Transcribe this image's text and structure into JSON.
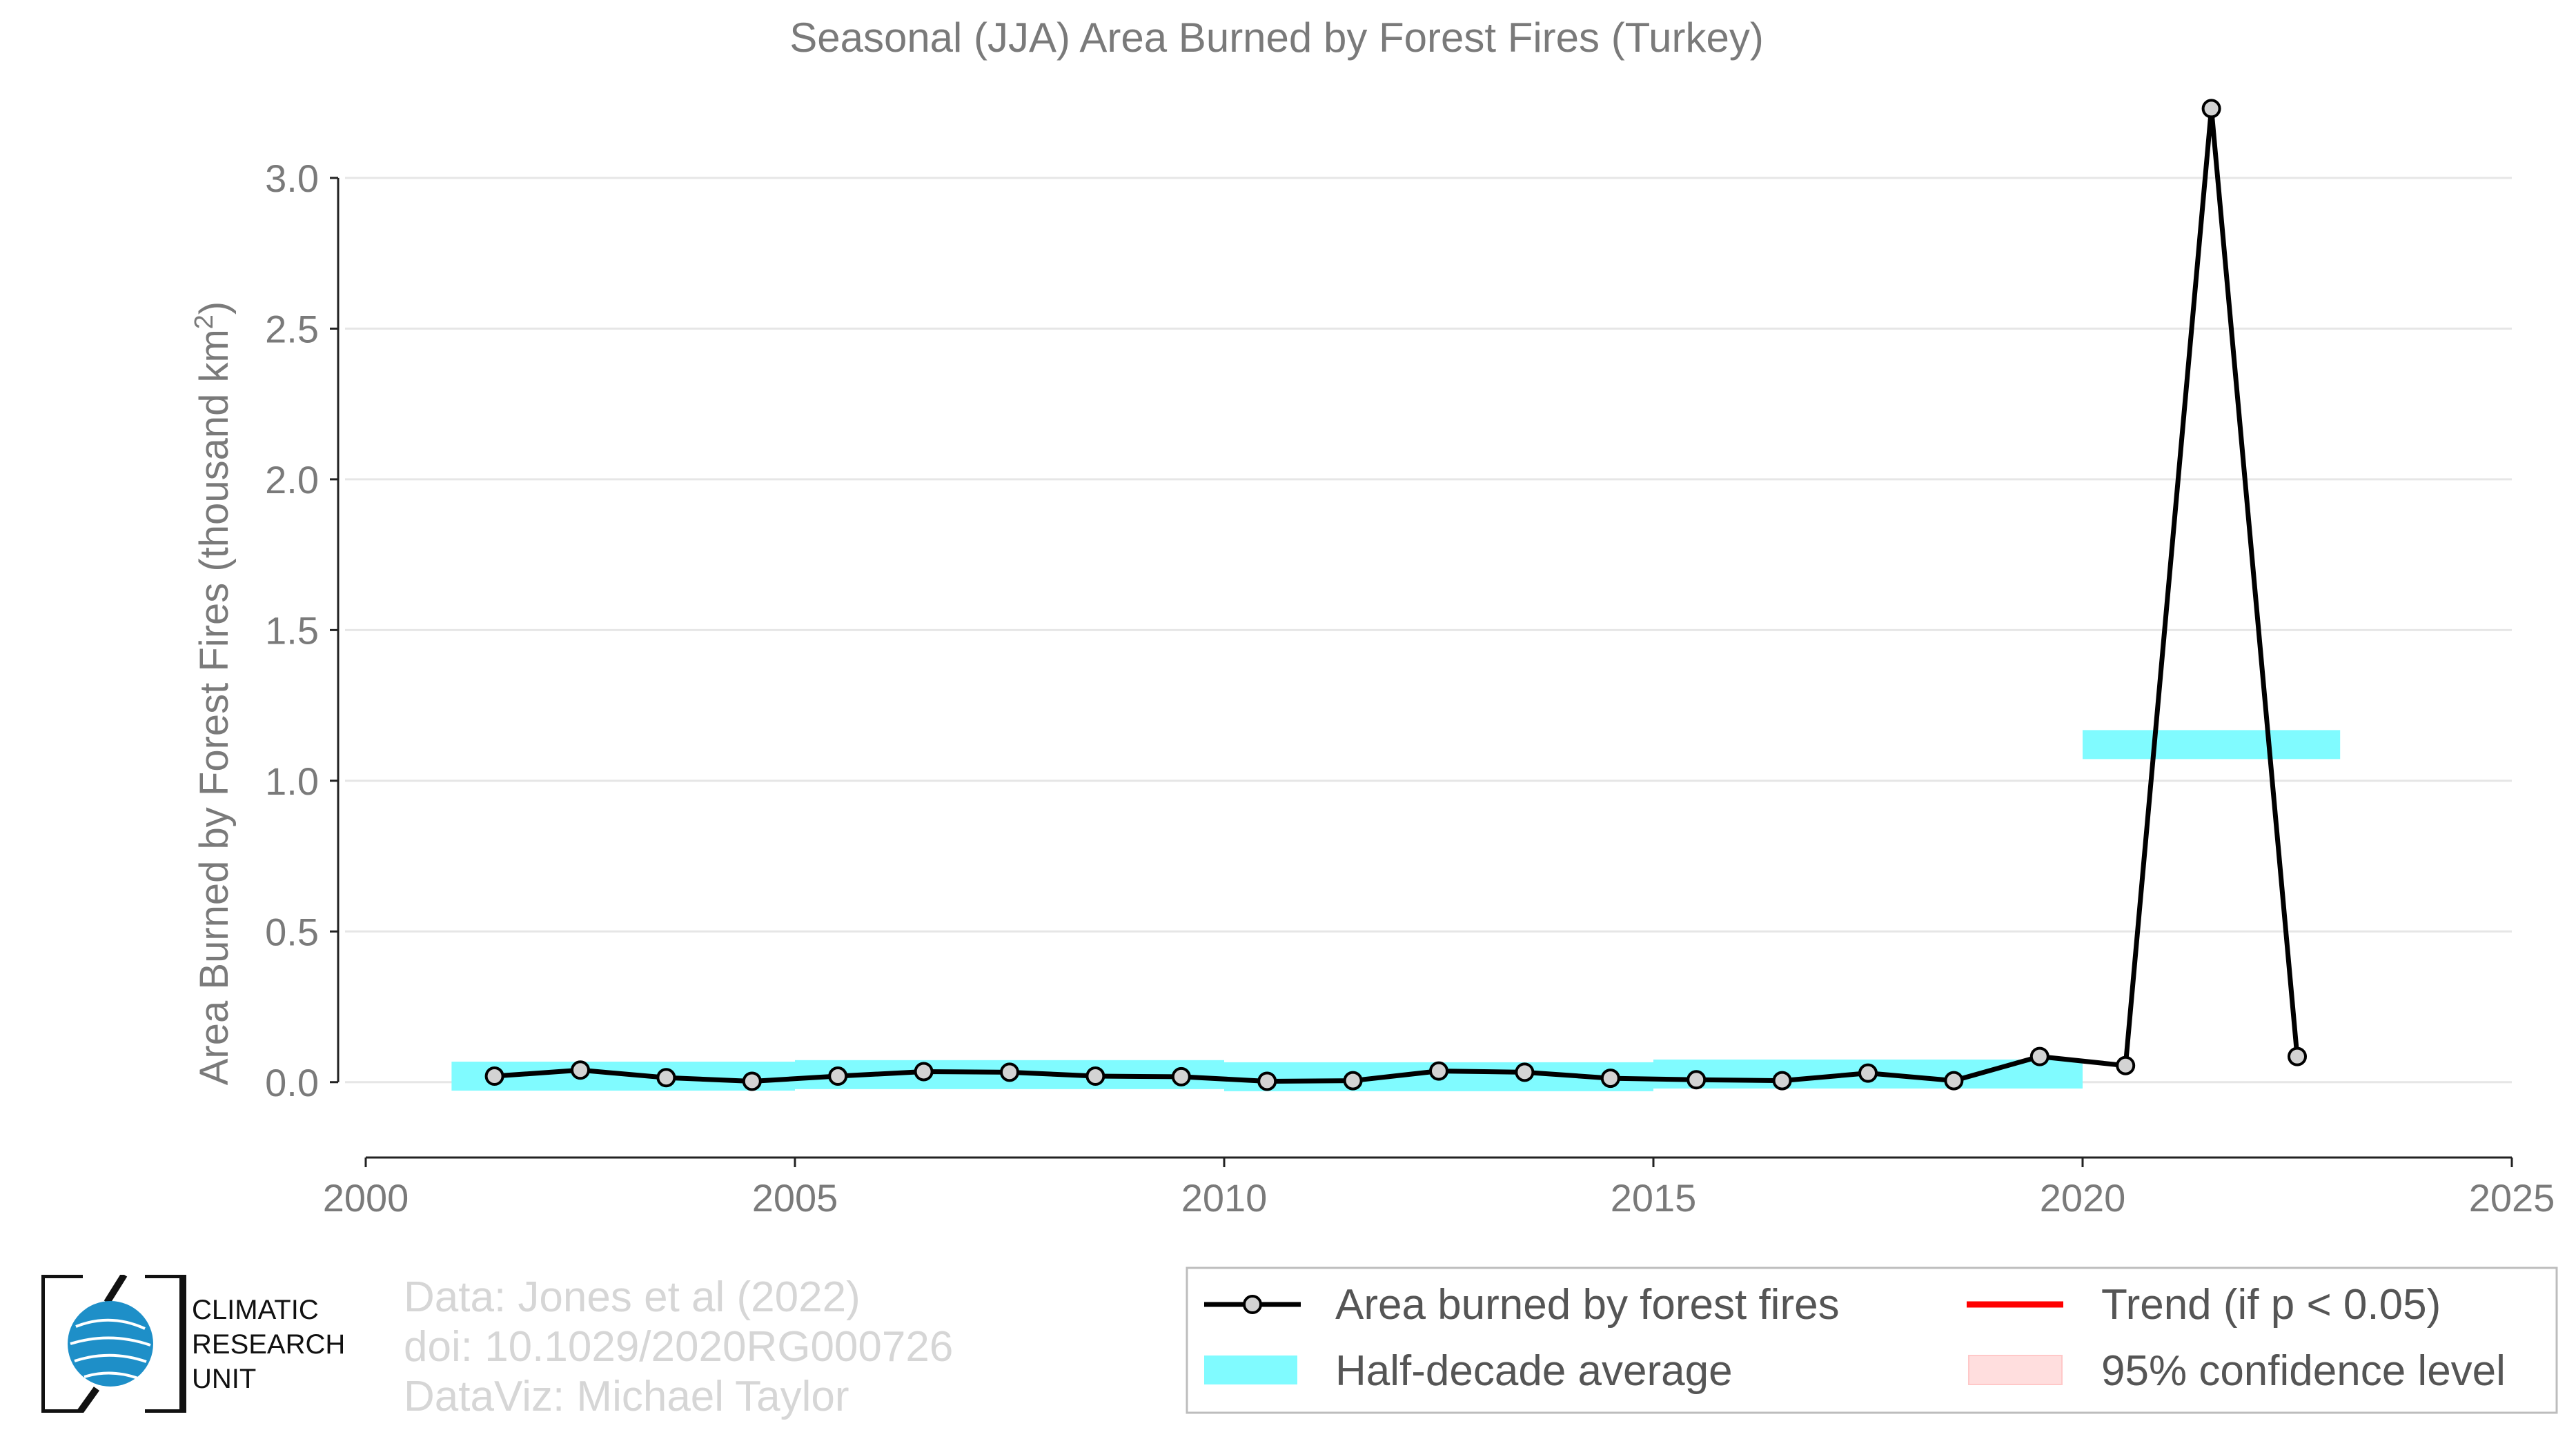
{
  "chart_data": {
    "type": "line",
    "title": "Seasonal (JJA) Area Burned by Forest Fires (Turkey)",
    "xlabel": "",
    "ylabel": "Area Burned by Forest Fires (thousand km",
    "ylabel_sup": "2",
    "ylabel_end": ")",
    "xlim": [
      2000,
      2025
    ],
    "ylim": [
      -0.25,
      3.35
    ],
    "x_ticks": [
      2000,
      2005,
      2010,
      2015,
      2020,
      2025
    ],
    "y_ticks": [
      0.0,
      0.5,
      1.0,
      1.5,
      2.0,
      2.5,
      3.0
    ],
    "y_tick_labels": [
      "0.0",
      "0.5",
      "1.0",
      "1.5",
      "2.0",
      "2.5",
      "3.0"
    ],
    "grid": "horizontal",
    "legend_position": "bottom-right",
    "series": [
      {
        "name": "Area burned by forest fires",
        "color": "#000000",
        "x": [
          2001.5,
          2002.5,
          2003.5,
          2004.5,
          2005.5,
          2006.5,
          2007.5,
          2008.5,
          2009.5,
          2010.5,
          2011.5,
          2012.5,
          2013.5,
          2014.5,
          2015.5,
          2016.5,
          2017.5,
          2018.5,
          2019.5,
          2020.5,
          2021.5,
          2022.5
        ],
        "y": [
          0.02,
          0.04,
          0.015,
          0.003,
          0.02,
          0.035,
          0.033,
          0.02,
          0.018,
          0.003,
          0.005,
          0.037,
          0.033,
          0.013,
          0.008,
          0.005,
          0.03,
          0.005,
          0.085,
          0.055,
          3.23,
          0.085
        ]
      }
    ],
    "half_decade_average": {
      "name": "Half-decade average",
      "color": "#80fbff",
      "segments": [
        {
          "x0": 2001,
          "x1": 2005,
          "y": 0.02
        },
        {
          "x0": 2005,
          "x1": 2010,
          "y": 0.025
        },
        {
          "x0": 2010,
          "x1": 2015,
          "y": 0.018
        },
        {
          "x0": 2015,
          "x1": 2020,
          "y": 0.027
        },
        {
          "x0": 2020,
          "x1": 2023,
          "y": 1.12
        }
      ]
    },
    "legend": [
      {
        "label": "Area burned by forest fires",
        "kind": "line-marker",
        "color": "#000000"
      },
      {
        "label": "Trend (if p < 0.05)",
        "kind": "line",
        "color": "#ff0000"
      },
      {
        "label": "Half-decade average",
        "kind": "band",
        "color": "#80fbff"
      },
      {
        "label": "95% confidence level",
        "kind": "band",
        "color": "#ffdede"
      }
    ]
  },
  "credits": {
    "line1": "Data: Jones et al (2022)",
    "line2": "doi: 10.1029/2020RG000726",
    "line3": "DataViz: Michael Taylor"
  },
  "logo": {
    "line1": "CLIMATIC",
    "line2": "RESEARCH",
    "line3": "UNIT"
  }
}
